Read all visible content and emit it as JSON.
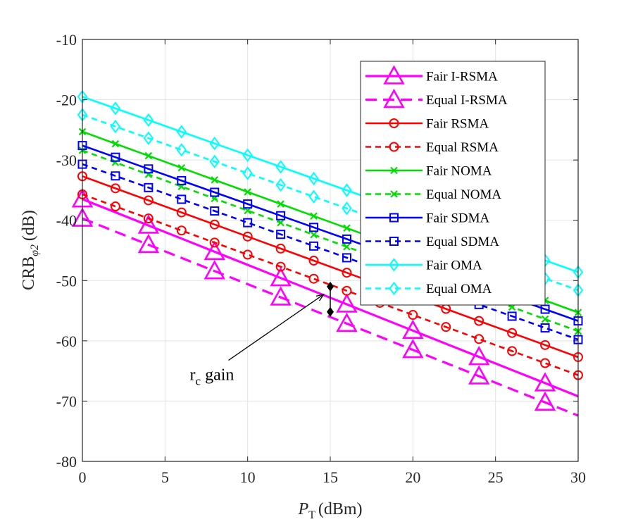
{
  "chart_data": {
    "type": "line",
    "xlabel_base": "P",
    "xlabel_sub": "T",
    "xlabel_unit": "(dBm)",
    "ylabel_base": "CRB",
    "ylabel_sub": "φ2",
    "ylabel_unit": "(dB)",
    "xlim": [
      0,
      30
    ],
    "ylim": [
      -80,
      -10
    ],
    "xticks": [
      0,
      5,
      10,
      15,
      20,
      25,
      30
    ],
    "yticks": [
      -10,
      -20,
      -30,
      -40,
      -50,
      -60,
      -70,
      -80
    ],
    "grid": true,
    "legend_position": "top-right",
    "x": [
      0,
      2,
      4,
      6,
      8,
      10,
      12,
      14,
      16,
      18,
      20,
      22,
      24,
      26,
      28,
      30
    ],
    "series": [
      {
        "name": "Fair I-RSMA",
        "color": "#ff00ff",
        "dash": "solid",
        "marker": "triangle",
        "y0": -36.5,
        "slope": -1.09,
        "marker_x": [
          0,
          4,
          8,
          12,
          16,
          20,
          24,
          28
        ]
      },
      {
        "name": "Equal I-RSMA",
        "color": "#ff00ff",
        "dash": "dashed",
        "marker": "triangle",
        "y0": -39.7,
        "slope": -1.09,
        "marker_x": [
          0,
          4,
          8,
          12,
          16,
          20,
          24,
          28
        ]
      },
      {
        "name": "Fair RSMA",
        "color": "#ff0000",
        "dash": "solid",
        "marker": "circle",
        "y0": -32.7,
        "slope": -1.0,
        "marker_x": [
          0,
          2,
          4,
          6,
          8,
          10,
          12,
          14,
          16,
          18,
          20,
          22,
          24,
          26,
          28,
          30
        ]
      },
      {
        "name": "Equal RSMA",
        "color": "#ff0000",
        "dash": "dashed",
        "marker": "circle",
        "y0": -35.7,
        "slope": -1.0,
        "marker_x": [
          0,
          2,
          4,
          6,
          8,
          10,
          12,
          14,
          16,
          18,
          20,
          22,
          24,
          26,
          28,
          30
        ]
      },
      {
        "name": "Fair NOMA",
        "color": "#00dd00",
        "dash": "solid",
        "marker": "x",
        "y0": -25.3,
        "slope": -1.0,
        "marker_x": [
          0,
          2,
          4,
          6,
          8,
          10,
          12,
          14,
          16,
          18,
          20,
          22,
          24,
          26,
          28,
          30
        ]
      },
      {
        "name": "Equal NOMA",
        "color": "#00dd00",
        "dash": "dashed",
        "marker": "x",
        "y0": -28.4,
        "slope": -1.0,
        "marker_x": [
          0,
          2,
          4,
          6,
          8,
          10,
          12,
          14,
          16,
          18,
          20,
          22,
          24,
          26,
          28,
          30
        ]
      },
      {
        "name": "Fair SDMA",
        "color": "#0000ff",
        "dash": "solid",
        "marker": "square",
        "y0": -27.6,
        "slope": -0.97,
        "marker_x": [
          0,
          2,
          4,
          6,
          8,
          10,
          12,
          14,
          16,
          18,
          20,
          22,
          24,
          26,
          28,
          30
        ]
      },
      {
        "name": "Equal SDMA",
        "color": "#0000ff",
        "dash": "dashed",
        "marker": "square",
        "y0": -30.7,
        "slope": -0.97,
        "marker_x": [
          0,
          2,
          4,
          6,
          8,
          10,
          12,
          14,
          16,
          18,
          20,
          22,
          24,
          26,
          28,
          30
        ]
      },
      {
        "name": "Fair OMA",
        "color": "#00ffff",
        "dash": "solid",
        "marker": "diamond",
        "y0": -19.5,
        "slope": -0.97,
        "marker_x": [
          0,
          2,
          4,
          6,
          8,
          10,
          12,
          14,
          16,
          18,
          20,
          22,
          24,
          26,
          28,
          30
        ]
      },
      {
        "name": "Equal OMA",
        "color": "#00ffff",
        "dash": "dashed",
        "marker": "diamond",
        "y0": -22.5,
        "slope": -0.97,
        "marker_x": [
          0,
          2,
          4,
          6,
          8,
          10,
          12,
          14,
          16,
          18,
          20,
          22,
          24,
          26,
          28,
          30
        ]
      }
    ],
    "annotation": {
      "text_base": "r",
      "text_sub": "c",
      "text_rest": " gain",
      "x_text": 6.5,
      "y_text": -66.5,
      "arrow_to": [
        14.6,
        -52.3
      ],
      "bracket_x": 15,
      "bracket_y": [
        -51.0,
        -55.2
      ]
    }
  }
}
